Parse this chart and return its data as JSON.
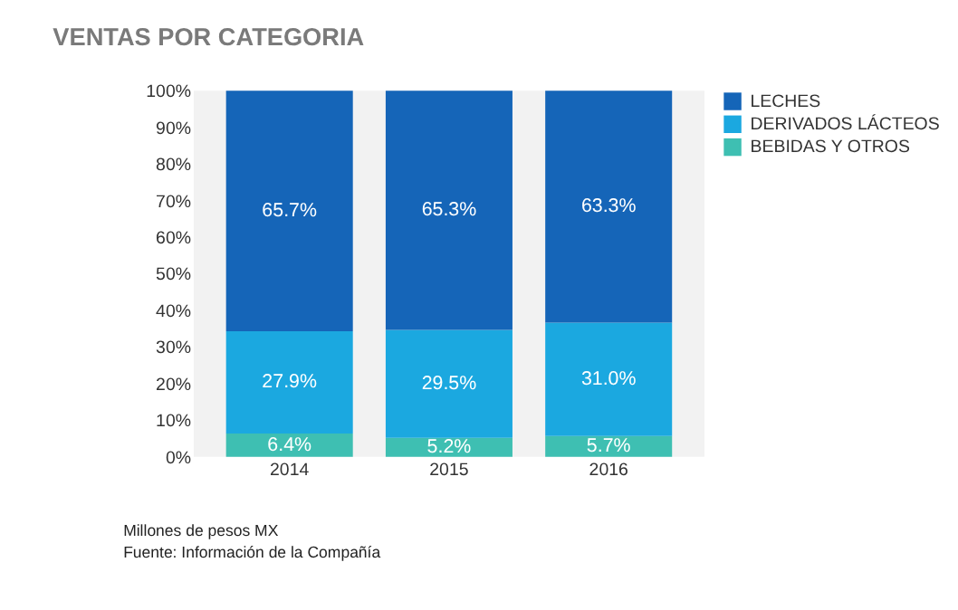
{
  "chart_data": {
    "type": "bar",
    "title": "VENTAS POR CATEGORIA",
    "categories": [
      "2014",
      "2015",
      "2016"
    ],
    "stacked": true,
    "legend": "right",
    "grid": false,
    "ylim": [
      0,
      100
    ],
    "yticks": [
      {
        "value": 0,
        "label": "0%"
      },
      {
        "value": 10,
        "label": "10%"
      },
      {
        "value": 20,
        "label": "20%"
      },
      {
        "value": 30,
        "label": "30%"
      },
      {
        "value": 40,
        "label": "40%"
      },
      {
        "value": 50,
        "label": "50%"
      },
      {
        "value": 60,
        "label": "60%"
      },
      {
        "value": 70,
        "label": "70%"
      },
      {
        "value": 80,
        "label": "80%"
      },
      {
        "value": 90,
        "label": "90%"
      },
      {
        "value": 100,
        "label": "100%"
      }
    ],
    "series": [
      {
        "name": "BEBIDAS Y OTROS",
        "color": "#3ebfb2",
        "values": [
          6.4,
          5.2,
          5.7
        ],
        "value_labels": [
          "6.4%",
          "5.2%",
          "5.7%"
        ]
      },
      {
        "name": "DERIVADOS LÁCTEOS",
        "color": "#1ba8e0",
        "values": [
          27.9,
          29.5,
          31.0
        ],
        "value_labels": [
          "27.9%",
          "29.5%",
          "31.0%"
        ]
      },
      {
        "name": "LECHES",
        "color": "#1565b8",
        "values": [
          65.7,
          65.3,
          63.3
        ],
        "value_labels": [
          "65.7%",
          "65.3%",
          "63.3%"
        ]
      }
    ],
    "annotations": [
      "Millones de pesos MX",
      "Fuente: Información de la Compañía"
    ]
  }
}
